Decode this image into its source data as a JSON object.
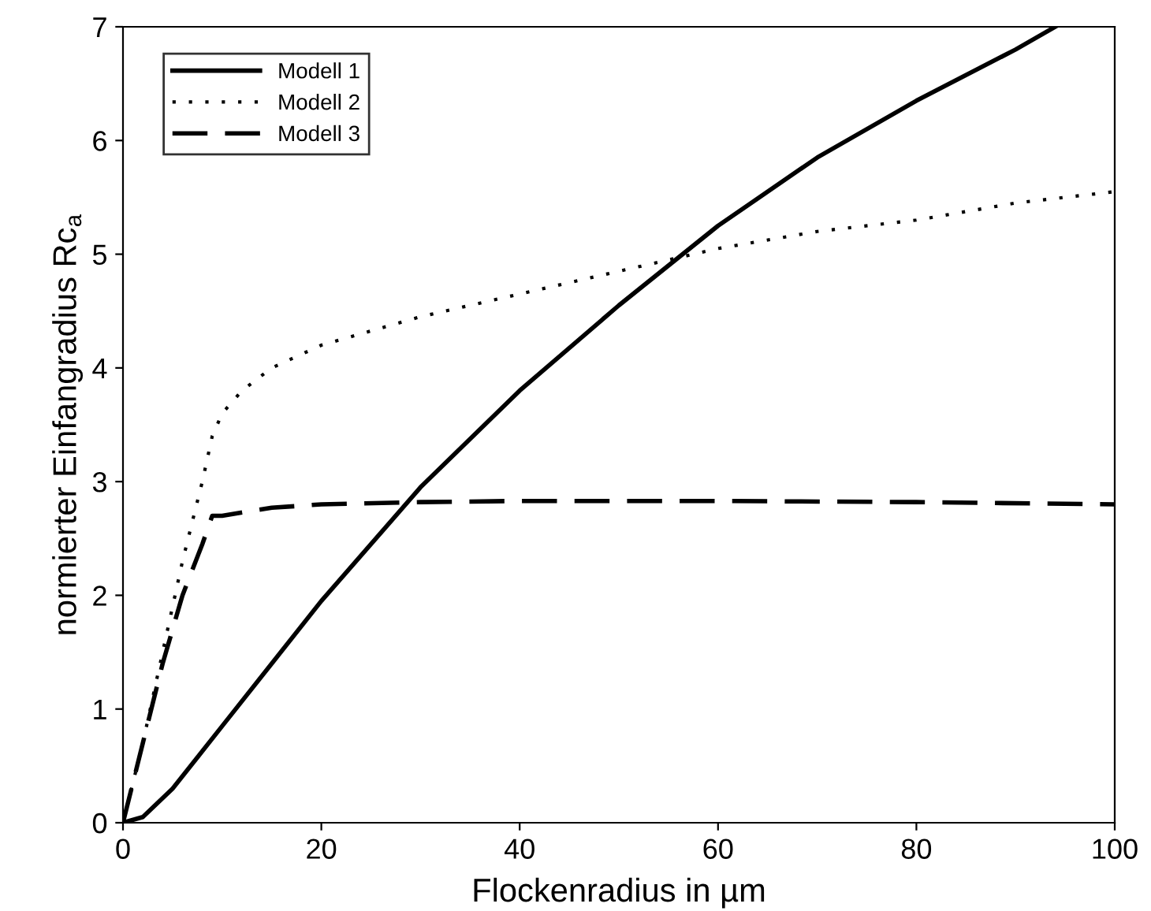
{
  "chart_data": {
    "type": "line",
    "xlabel": "Flockenradius in µm",
    "ylabel": "normierter Einfangradius Rc$_{a}$",
    "xlim": [
      0,
      100
    ],
    "ylim": [
      0,
      7
    ],
    "xticks": [
      0,
      20,
      40,
      60,
      80,
      100
    ],
    "yticks": [
      0,
      1,
      2,
      3,
      4,
      5,
      6,
      7
    ],
    "grid": false,
    "legend": "top left",
    "marker": "none",
    "series": [
      {
        "name": "Modell 1",
        "color": "#000000",
        "line_style": "solid",
        "x": [
          0,
          2,
          5,
          10,
          15,
          20,
          30,
          40,
          50,
          60,
          70,
          80,
          90,
          94
        ],
        "values": [
          0,
          0.05,
          0.3,
          0.85,
          1.4,
          1.95,
          2.95,
          3.8,
          4.55,
          5.25,
          5.85,
          6.35,
          6.8,
          7.0
        ]
      },
      {
        "name": "Modell 2",
        "color": "#000000",
        "line_style": "dotted",
        "x": [
          0,
          2,
          4,
          6,
          8,
          9,
          10,
          12,
          15,
          20,
          30,
          40,
          50,
          60,
          70,
          80,
          90,
          100
        ],
        "values": [
          0,
          0.7,
          1.5,
          2.3,
          3.0,
          3.4,
          3.6,
          3.8,
          4.0,
          4.2,
          4.45,
          4.65,
          4.85,
          5.05,
          5.2,
          5.3,
          5.45,
          5.55
        ]
      },
      {
        "name": "Modell 3",
        "color": "#000000",
        "line_style": "dashed",
        "x": [
          0,
          2,
          4,
          6,
          8,
          9,
          10,
          15,
          20,
          30,
          40,
          60,
          80,
          100
        ],
        "values": [
          0,
          0.7,
          1.4,
          2.0,
          2.45,
          2.7,
          2.7,
          2.77,
          2.8,
          2.82,
          2.83,
          2.83,
          2.82,
          2.8
        ]
      }
    ]
  }
}
